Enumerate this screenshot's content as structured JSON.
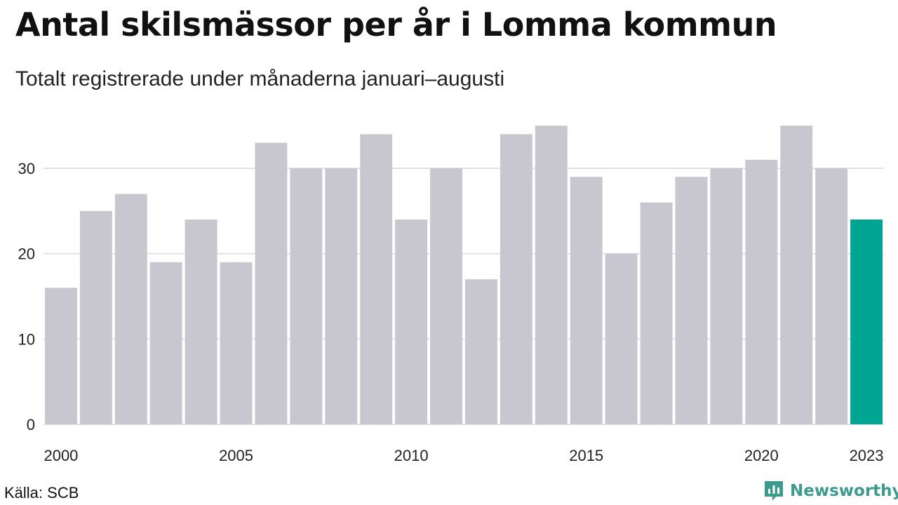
{
  "header": {
    "title": "Antal skilsmässor per år i Lomma kommun",
    "subtitle": "Totalt registrerade under månaderna januari–augusti"
  },
  "footer": {
    "source": "Källa: SCB",
    "brand": "Newsworthy",
    "brand_icon": "newsworthy-logo-icon"
  },
  "colors": {
    "bar": "#c8c7cf",
    "highlight": "#00a693",
    "grid": "#e2e2e6",
    "brand": "#3c9b8e"
  },
  "chart_data": {
    "type": "bar",
    "categories": [
      "2000",
      "2001",
      "2002",
      "2003",
      "2004",
      "2005",
      "2006",
      "2007",
      "2008",
      "2009",
      "2010",
      "2011",
      "2012",
      "2013",
      "2014",
      "2015",
      "2016",
      "2017",
      "2018",
      "2019",
      "2020",
      "2021",
      "2022",
      "2023"
    ],
    "values": [
      16,
      25,
      27,
      19,
      24,
      19,
      33,
      30,
      30,
      34,
      24,
      30,
      17,
      34,
      35,
      29,
      20,
      26,
      29,
      30,
      31,
      35,
      30,
      24
    ],
    "highlight_index": 23,
    "x_tick_labels": [
      "2000",
      "2005",
      "2010",
      "2015",
      "2020",
      "2023"
    ],
    "y_ticks": [
      0,
      10,
      20,
      30
    ],
    "ylim": [
      0,
      36
    ],
    "grid": true,
    "xlabel": "",
    "ylabel": ""
  }
}
